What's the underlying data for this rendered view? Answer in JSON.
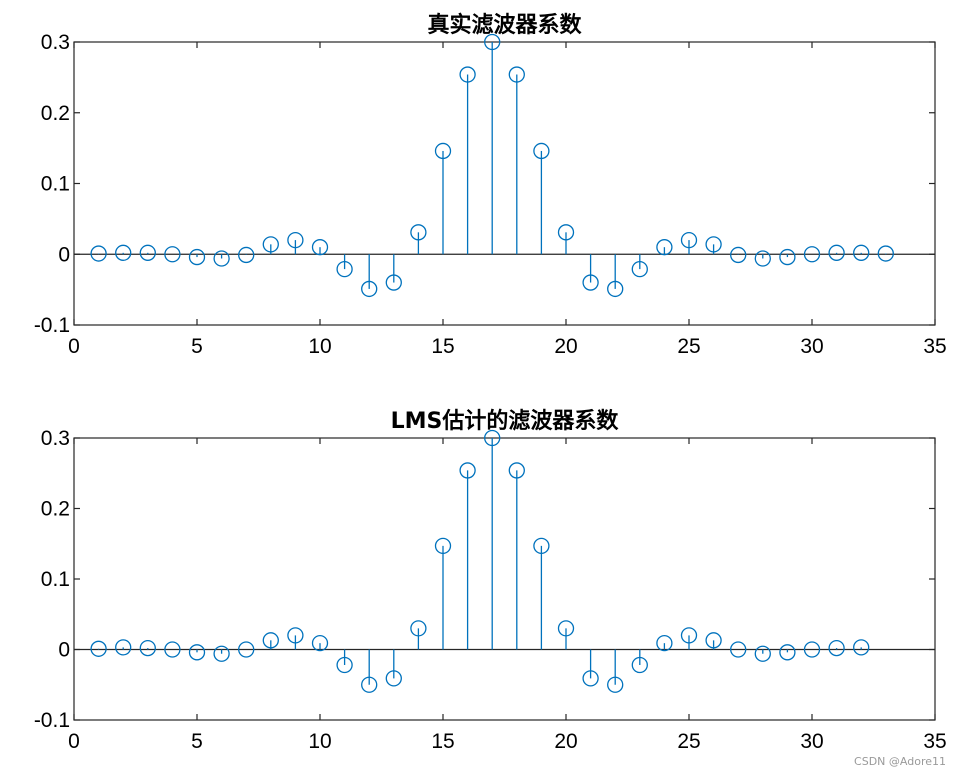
{
  "chart_data": [
    {
      "type": "stem",
      "title": "真实滤波器系数",
      "xlim": [
        0,
        35
      ],
      "ylim": [
        -0.1,
        0.3
      ],
      "xticks": [
        0,
        5,
        10,
        15,
        20,
        25,
        30,
        35
      ],
      "yticks": [
        -0.1,
        0,
        0.1,
        0.2,
        0.3
      ],
      "xtick_labels": [
        "0",
        "5",
        "10",
        "15",
        "20",
        "25",
        "30",
        "35"
      ],
      "ytick_labels": [
        "-0.1",
        "0",
        "0.1",
        "0.2",
        "0.3"
      ],
      "baseline": 0,
      "color": "#0072BD",
      "x": [
        1,
        2,
        3,
        4,
        5,
        6,
        7,
        8,
        9,
        10,
        11,
        12,
        13,
        14,
        15,
        16,
        17,
        18,
        19,
        20,
        21,
        22,
        23,
        24,
        25,
        26,
        27,
        28,
        29,
        30,
        31,
        32,
        33
      ],
      "y": [
        0.001,
        0.002,
        0.002,
        0.0,
        -0.004,
        -0.006,
        -0.001,
        0.014,
        0.02,
        0.01,
        -0.021,
        -0.049,
        -0.04,
        0.031,
        0.146,
        0.254,
        0.3,
        0.254,
        0.146,
        0.031,
        -0.04,
        -0.049,
        -0.021,
        0.01,
        0.02,
        0.014,
        -0.001,
        -0.006,
        -0.004,
        0.0,
        0.002,
        0.002,
        0.001
      ]
    },
    {
      "type": "stem",
      "title": "LMS估计的滤波器系数",
      "xlim": [
        0,
        35
      ],
      "ylim": [
        -0.1,
        0.3
      ],
      "xticks": [
        0,
        5,
        10,
        15,
        20,
        25,
        30,
        35
      ],
      "yticks": [
        -0.1,
        0,
        0.1,
        0.2,
        0.3
      ],
      "xtick_labels": [
        "0",
        "5",
        "10",
        "15",
        "20",
        "25",
        "30",
        "35"
      ],
      "ytick_labels": [
        "-0.1",
        "0",
        "0.1",
        "0.2",
        "0.3"
      ],
      "baseline": 0,
      "color": "#0072BD",
      "x": [
        1,
        2,
        3,
        4,
        5,
        6,
        7,
        8,
        9,
        10,
        11,
        12,
        13,
        14,
        15,
        16,
        17,
        18,
        19,
        20,
        21,
        22,
        23,
        24,
        25,
        26,
        27,
        28,
        29,
        30,
        31,
        32
      ],
      "y": [
        0.001,
        0.003,
        0.002,
        0.0,
        -0.004,
        -0.006,
        0.0,
        0.013,
        0.02,
        0.009,
        -0.022,
        -0.05,
        -0.041,
        0.03,
        0.147,
        0.254,
        0.3,
        0.254,
        0.147,
        0.03,
        -0.041,
        -0.05,
        -0.022,
        0.009,
        0.02,
        0.013,
        0.0,
        -0.006,
        -0.004,
        0.0,
        0.002,
        0.003
      ]
    }
  ],
  "watermark": "CSDN @Adore11"
}
